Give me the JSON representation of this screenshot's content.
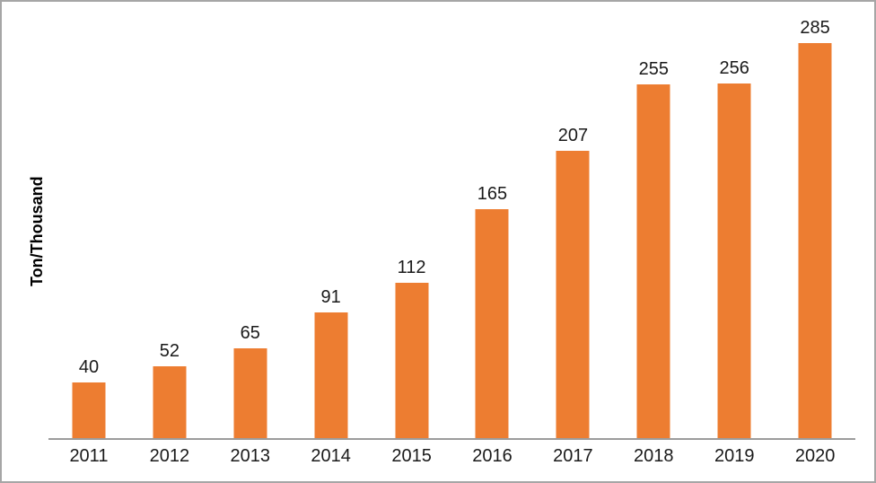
{
  "chart_data": {
    "type": "bar",
    "categories": [
      "2011",
      "2012",
      "2013",
      "2014",
      "2015",
      "2016",
      "2017",
      "2018",
      "2019",
      "2020"
    ],
    "values": [
      40,
      52,
      65,
      91,
      112,
      165,
      207,
      255,
      256,
      285
    ],
    "ylabel": "Ton/Thousand",
    "data_labels_shown": true,
    "grid": false,
    "legend": false,
    "colors": {
      "bar": "#ED7D31",
      "axis_line": "#9C9C9C",
      "frame_border": "#A6A6A6",
      "label_text": "#1A1A1A",
      "axis_title_text": "#000000"
    }
  }
}
